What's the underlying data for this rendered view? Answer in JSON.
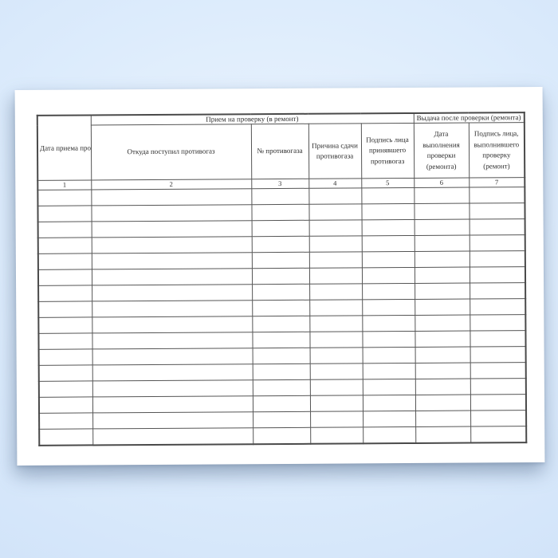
{
  "background": {
    "center_color": "#eef5fe",
    "edge_color": "#d2e4f9"
  },
  "paper": {
    "color": "#ffffff"
  },
  "table": {
    "line_color": "#555555",
    "band_headers": [
      {
        "label": "Прием на проверку (в ремонт)"
      },
      {
        "label": "Выдача после проверки (ремонта)"
      }
    ],
    "columns": [
      {
        "num": "1",
        "title": "Дата приема противогаза"
      },
      {
        "num": "2",
        "title": "Откуда поступил противогаз"
      },
      {
        "num": "3",
        "title": "№ противогаза"
      },
      {
        "num": "4",
        "title": "Причина сдачи противогаза"
      },
      {
        "num": "5",
        "title": "Подпись лица принявшего противогаз"
      },
      {
        "num": "6",
        "title": "Дата выполнения проверки (ремонта)"
      },
      {
        "num": "7",
        "title": "Подпись лица, выполнившего проверку (ремонт)"
      }
    ],
    "empty_row_count": 16
  }
}
